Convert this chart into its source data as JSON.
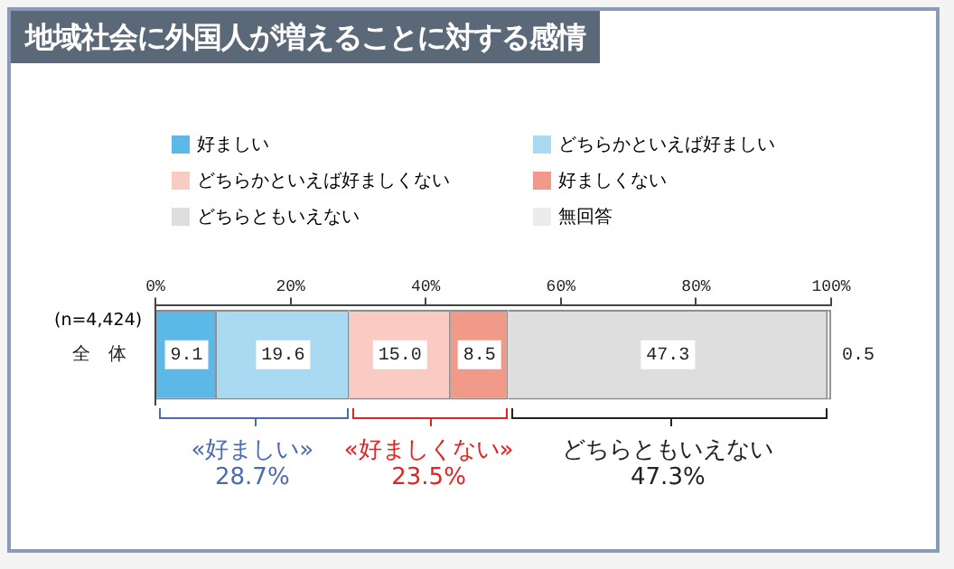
{
  "chart_data": {
    "type": "bar",
    "orientation": "horizontal",
    "stacked": true,
    "title": "地域社会に外国人が増えることに対する感情",
    "categories": [
      "全　体"
    ],
    "series": [
      {
        "name": "好ましい",
        "color": "#5cb8e6",
        "values": [
          9.1
        ],
        "value_labels": [
          "9.1"
        ]
      },
      {
        "name": "どちらかといえば好ましい",
        "color": "#aad9f2",
        "values": [
          19.6
        ],
        "value_labels": [
          "19.6"
        ]
      },
      {
        "name": "どちらかといえば好ましくない",
        "color": "#f9cbc2",
        "values": [
          15.0
        ],
        "value_labels": [
          "15.0"
        ]
      },
      {
        "name": "好ましくない",
        "color": "#f29a8a",
        "values": [
          8.5
        ],
        "value_labels": [
          "8.5"
        ]
      },
      {
        "name": "どちらともいえない",
        "color": "#dedede",
        "values": [
          47.3
        ],
        "value_labels": [
          "47.3"
        ]
      },
      {
        "name": "無回答",
        "color": "#ececec",
        "values": [
          0.5
        ],
        "value_labels": [
          "0.5"
        ]
      }
    ],
    "xlim": [
      0,
      100
    ],
    "xticks": [
      {
        "value": 0,
        "label": "0%"
      },
      {
        "value": 20,
        "label": "20%"
      },
      {
        "value": 40,
        "label": "40%"
      },
      {
        "value": 60,
        "label": "60%"
      },
      {
        "value": 80,
        "label": "80%"
      },
      {
        "value": 100,
        "label": "100%"
      }
    ],
    "grid": false,
    "legend": "top",
    "annotations": [
      "(n=4,424)",
      "«好ましい»",
      "28.7%",
      "«好ましくない»",
      "23.5%",
      "どちらともいえない",
      "47.3%"
    ]
  }
}
